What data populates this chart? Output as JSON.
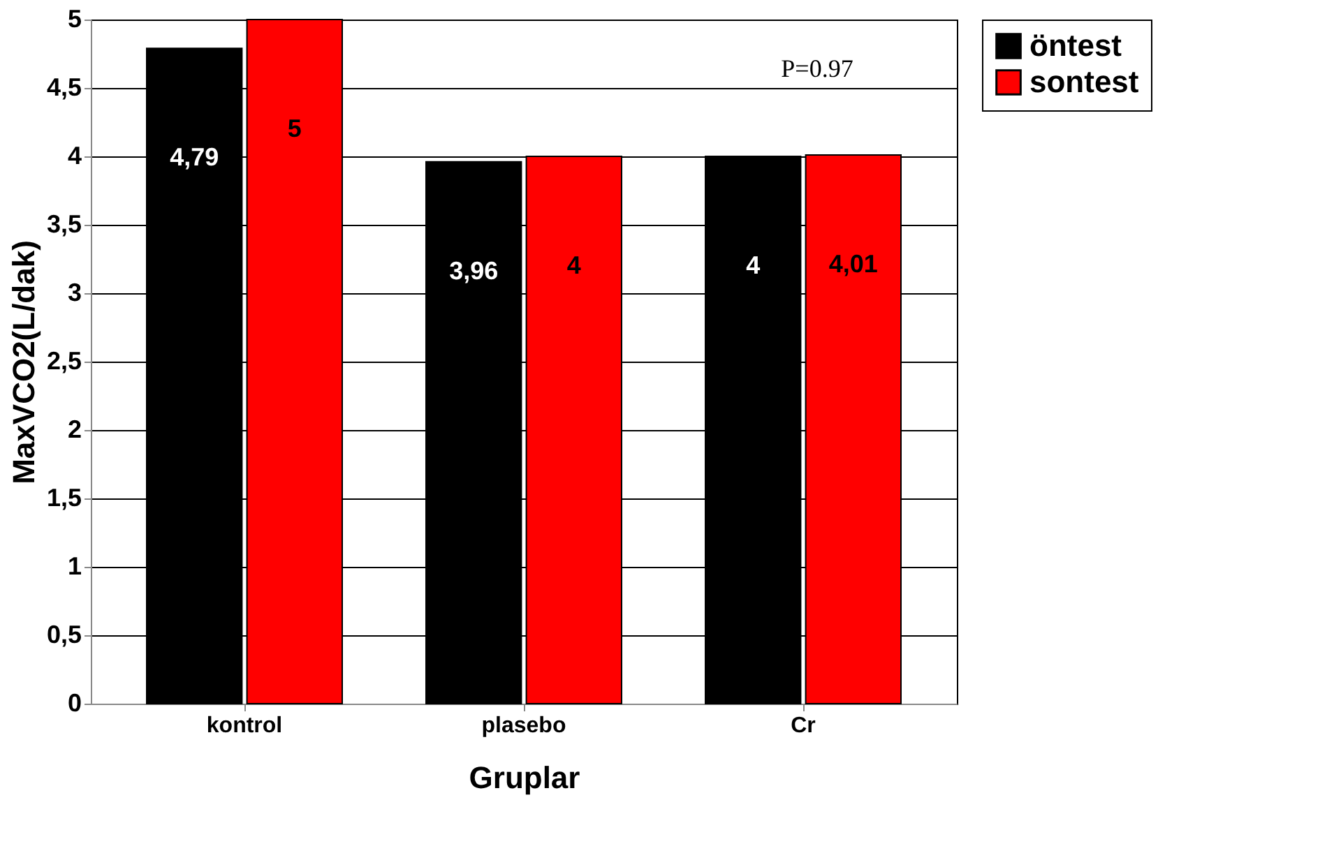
{
  "chart_data": {
    "type": "bar",
    "xlabel": "Gruplar",
    "ylabel": "MaxVCO2(L/dak)",
    "categories": [
      "kontrol",
      "plasebo",
      "Cr"
    ],
    "series": [
      {
        "name": "öntest",
        "color": "#000000",
        "values": [
          4.79,
          3.96,
          4
        ],
        "value_labels": [
          "4,79",
          "3,96",
          "4"
        ]
      },
      {
        "name": "sontest",
        "color": "#ff0000",
        "values": [
          5,
          4,
          4.01
        ],
        "value_labels": [
          "5",
          "4",
          "4,01"
        ]
      }
    ],
    "ylim": [
      0,
      5
    ],
    "yticks": [
      0,
      {
        "value": 0.5,
        "label": "0,5"
      },
      1,
      {
        "value": 1.5,
        "label": "1,5"
      },
      2,
      {
        "value": 2.5,
        "label": "2,5"
      },
      3,
      {
        "value": 3.5,
        "label": "3,5"
      },
      4,
      {
        "value": 4.5,
        "label": "4,5"
      },
      5
    ],
    "grid": "y",
    "legend": "right",
    "annotations": [
      "P=0.97"
    ]
  }
}
